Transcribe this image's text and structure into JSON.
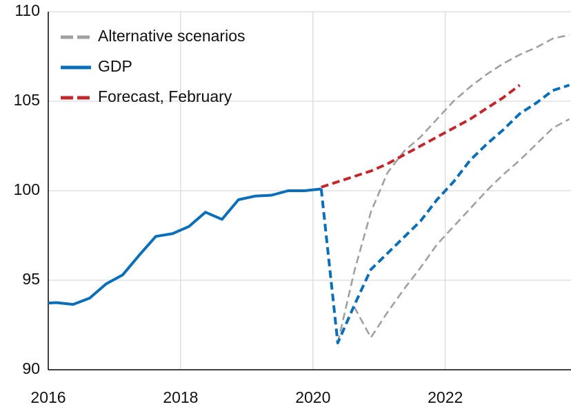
{
  "chart_data": {
    "type": "line",
    "x": [
      2015.875,
      2016.125,
      2016.375,
      2016.625,
      2016.875,
      2017.125,
      2017.375,
      2017.625,
      2017.875,
      2018.125,
      2018.375,
      2018.625,
      2018.875,
      2019.125,
      2019.375,
      2019.625,
      2019.875,
      2020.125,
      2020.375,
      2020.625,
      2020.875,
      2021.125,
      2021.375,
      2021.625,
      2021.875,
      2022.125,
      2022.375,
      2022.625,
      2022.875,
      2023.125,
      2023.375,
      2023.625,
      2023.875
    ],
    "series": [
      {
        "name": "Alternative scenarios",
        "color": "#a0a0a0",
        "style": "dashed",
        "upper": [
          null,
          null,
          null,
          null,
          null,
          null,
          null,
          null,
          null,
          null,
          null,
          null,
          null,
          null,
          null,
          null,
          null,
          null,
          91.5,
          95.5,
          98.8,
          101.0,
          102.2,
          103.0,
          104.0,
          105.0,
          105.8,
          106.5,
          107.1,
          107.6,
          108.0,
          108.5,
          108.7
        ],
        "lower": [
          null,
          null,
          null,
          null,
          null,
          null,
          null,
          null,
          null,
          null,
          null,
          null,
          null,
          null,
          null,
          null,
          null,
          null,
          null,
          93.5,
          91.8,
          93.2,
          94.5,
          95.7,
          97.0,
          98.0,
          99.0,
          100.0,
          100.9,
          101.7,
          102.6,
          103.5,
          104.0
        ]
      },
      {
        "name": "Forecast, February",
        "color": "#c0282d",
        "style": "dashed",
        "values": [
          null,
          null,
          null,
          null,
          null,
          null,
          null,
          null,
          null,
          null,
          null,
          null,
          null,
          null,
          null,
          null,
          null,
          100.2,
          100.5,
          100.8,
          101.1,
          101.5,
          102.0,
          102.5,
          103.0,
          103.5,
          104.0,
          104.6,
          105.2,
          105.9,
          null,
          null,
          null
        ]
      },
      {
        "name": "GDP",
        "color": "#0a6eb8",
        "style": "solid",
        "values": [
          93.7,
          93.75,
          93.65,
          94.0,
          94.8,
          95.3,
          96.4,
          97.45,
          97.6,
          98.0,
          98.8,
          98.4,
          99.5,
          99.7,
          99.75,
          100.0,
          100.0,
          100.1,
          null,
          null,
          null,
          null,
          null,
          null,
          null,
          null,
          null,
          null,
          null,
          null,
          null,
          null,
          null
        ],
        "projection": [
          null,
          null,
          null,
          null,
          null,
          null,
          null,
          null,
          null,
          null,
          null,
          null,
          null,
          null,
          null,
          null,
          null,
          100.1,
          91.5,
          93.6,
          95.6,
          96.5,
          97.4,
          98.3,
          99.5,
          100.5,
          101.7,
          102.6,
          103.4,
          104.3,
          104.9,
          105.6,
          105.9
        ]
      }
    ],
    "legend_order": [
      0,
      2,
      1
    ],
    "xlim": [
      2016,
      2023.9
    ],
    "xticks": [
      2016,
      2018,
      2020,
      2022
    ],
    "ylim": [
      90,
      110
    ],
    "yticks": [
      90,
      95,
      100,
      105,
      110
    ],
    "grid": true,
    "legend": "upper left"
  }
}
